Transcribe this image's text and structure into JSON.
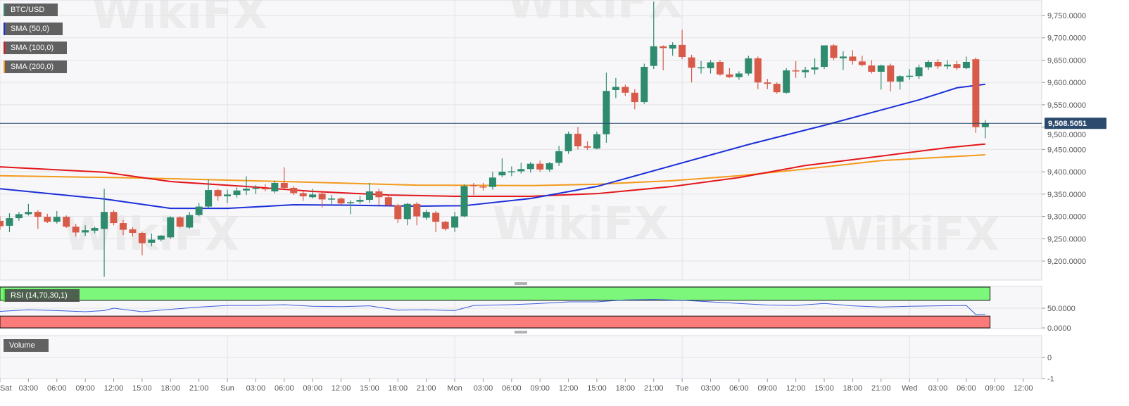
{
  "legends": {
    "symbol": {
      "label": "BTC/USD",
      "color": "#2e8b6e"
    },
    "sma50": {
      "label": "SMA (50,0)",
      "color": "#1b2fd8"
    },
    "sma100": {
      "label": "SMA (100,0)",
      "color": "#e3161b"
    },
    "sma200": {
      "label": "SMA (200,0)",
      "color": "#f39a1b"
    },
    "rsi": {
      "label": "RSI (14,70,30,1)",
      "color": "#3a5bd9"
    },
    "volume": {
      "label": "Volume"
    }
  },
  "current_price_label": "9,508.5051",
  "watermark": "WikiFX",
  "colors": {
    "up": "#2e8b6e",
    "down": "#d85a48",
    "rsi_overbought": "#7cf77c",
    "rsi_oversold": "#fb7b7b",
    "price_tag": "#2b4a6d"
  },
  "chart_data": {
    "type": "candlestick",
    "title": "",
    "price_axis": {
      "ylim": [
        9150,
        9790
      ],
      "ticks": [
        "9,200.0000",
        "9,250.0000",
        "9,300.0000",
        "9,350.0000",
        "9,400.0000",
        "9,450.0000",
        "9,500.0000",
        "9,550.0000",
        "9,600.0000",
        "9,650.0000",
        "9,700.0000",
        "9,750.0000"
      ],
      "tick_values": [
        9200,
        9250,
        9300,
        9350,
        9400,
        9450,
        9500,
        9550,
        9600,
        9650,
        9700,
        9750
      ]
    },
    "time_axis": {
      "ticks": [
        "Sat",
        "03:00",
        "06:00",
        "09:00",
        "12:00",
        "15:00",
        "18:00",
        "21:00",
        "Sun",
        "03:00",
        "06:00",
        "09:00",
        "12:00",
        "15:00",
        "18:00",
        "21:00",
        "Mon",
        "03:00",
        "06:00",
        "09:00",
        "12:00",
        "15:00",
        "18:00",
        "21:00",
        "Tue",
        "03:00",
        "06:00",
        "09:00",
        "12:00",
        "15:00",
        "18:00",
        "21:00",
        "Wed",
        "03:00",
        "06:00",
        "09:00",
        "12:00"
      ]
    },
    "grid": true,
    "current_price": 9508.5051,
    "candles_columns": [
      "time",
      "open",
      "high",
      "low",
      "close"
    ],
    "candles": [
      [
        "Sat 00:00",
        9290,
        9300,
        9270,
        9278
      ],
      [
        "Sat 01:00",
        9279,
        9307,
        9265,
        9296
      ],
      [
        "Sat 02:00",
        9296,
        9310,
        9290,
        9305
      ],
      [
        "Sat 03:00",
        9305,
        9328,
        9302,
        9310
      ],
      [
        "Sat 04:00",
        9310,
        9314,
        9272,
        9299
      ],
      [
        "Sat 05:00",
        9299,
        9306,
        9285,
        9288
      ],
      [
        "Sat 06:00",
        9288,
        9312,
        9284,
        9299
      ],
      [
        "Sat 07:00",
        9299,
        9302,
        9274,
        9277
      ],
      [
        "Sat 08:00",
        9277,
        9283,
        9255,
        9264
      ],
      [
        "Sat 09:00",
        9264,
        9280,
        9256,
        9269
      ],
      [
        "Sat 10:00",
        9268,
        9277,
        9262,
        9274
      ],
      [
        "Sat 11:00",
        9272,
        9362,
        9165,
        9310
      ],
      [
        "Sat 12:00",
        9310,
        9314,
        9280,
        9285
      ],
      [
        "Sat 13:00",
        9285,
        9292,
        9258,
        9270
      ],
      [
        "Sat 14:00",
        9271,
        9276,
        9255,
        9263
      ],
      [
        "Sat 15:00",
        9263,
        9266,
        9213,
        9240
      ],
      [
        "Sat 16:00",
        9241,
        9262,
        9233,
        9248
      ],
      [
        "Sat 17:00",
        9248,
        9258,
        9244,
        9257
      ],
      [
        "Sat 18:00",
        9253,
        9300,
        9250,
        9298
      ],
      [
        "Sat 19:00",
        9298,
        9300,
        9275,
        9277
      ],
      [
        "Sat 20:00",
        9275,
        9310,
        9272,
        9303
      ],
      [
        "Sat 21:00",
        9303,
        9330,
        9300,
        9322
      ],
      [
        "Sat 22:00",
        9322,
        9383,
        9318,
        9359
      ],
      [
        "Sat 23:00",
        9359,
        9362,
        9335,
        9345
      ],
      [
        "Sun 00:00",
        9345,
        9360,
        9330,
        9349
      ],
      [
        "Sun 01:00",
        9348,
        9365,
        9342,
        9358
      ],
      [
        "Sun 02:00",
        9358,
        9390,
        9348,
        9362
      ],
      [
        "Sun 03:00",
        9362,
        9370,
        9350,
        9364
      ],
      [
        "Sun 04:00",
        9363,
        9372,
        9356,
        9361
      ],
      [
        "Sun 05:00",
        9356,
        9380,
        9352,
        9375
      ],
      [
        "Sun 06:00",
        9375,
        9410,
        9362,
        9364
      ],
      [
        "Sun 07:00",
        9364,
        9368,
        9348,
        9352
      ],
      [
        "Sun 08:00",
        9352,
        9356,
        9335,
        9345
      ],
      [
        "Sun 09:00",
        9343,
        9362,
        9340,
        9349
      ],
      [
        "Sun 10:00",
        9351,
        9354,
        9320,
        9338
      ],
      [
        "Sun 11:00",
        9338,
        9348,
        9328,
        9340
      ],
      [
        "Sun 12:00",
        9340,
        9343,
        9326,
        9329
      ],
      [
        "Sun 13:00",
        9330,
        9336,
        9305,
        9332
      ],
      [
        "Sun 14:00",
        9333,
        9346,
        9328,
        9337
      ],
      [
        "Sun 15:00",
        9337,
        9375,
        9330,
        9356
      ],
      [
        "Sun 16:00",
        9356,
        9362,
        9325,
        9343
      ],
      [
        "Sun 17:00",
        9343,
        9346,
        9322,
        9325
      ],
      [
        "Sun 18:00",
        9325,
        9328,
        9285,
        9294
      ],
      [
        "Sun 19:00",
        9294,
        9330,
        9280,
        9328
      ],
      [
        "Sun 20:00",
        9328,
        9332,
        9280,
        9300
      ],
      [
        "Sun 21:00",
        9297,
        9315,
        9292,
        9310
      ],
      [
        "Sun 22:00",
        9308,
        9312,
        9265,
        9288
      ],
      [
        "Sun 23:00",
        9288,
        9290,
        9268,
        9272
      ],
      [
        "Mon 00:00",
        9275,
        9310,
        9265,
        9300
      ],
      [
        "Mon 01:00",
        9300,
        9372,
        9298,
        9368
      ],
      [
        "Mon 02:00",
        9370,
        9375,
        9348,
        9368
      ],
      [
        "Mon 03:00",
        9367,
        9375,
        9358,
        9366
      ],
      [
        "Mon 04:00",
        9366,
        9400,
        9360,
        9387
      ],
      [
        "Mon 05:00",
        9392,
        9430,
        9388,
        9400
      ],
      [
        "Mon 06:00",
        9400,
        9412,
        9390,
        9401
      ],
      [
        "Mon 07:00",
        9401,
        9420,
        9396,
        9406
      ],
      [
        "Mon 08:00",
        9406,
        9422,
        9398,
        9418
      ],
      [
        "Mon 09:00",
        9418,
        9425,
        9400,
        9405
      ],
      [
        "Mon 10:00",
        9405,
        9422,
        9400,
        9419
      ],
      [
        "Mon 11:00",
        9420,
        9458,
        9413,
        9446
      ],
      [
        "Mon 12:00",
        9446,
        9490,
        9440,
        9485
      ],
      [
        "Mon 13:00",
        9485,
        9500,
        9450,
        9457
      ],
      [
        "Mon 14:00",
        9457,
        9468,
        9449,
        9454
      ],
      [
        "Mon 15:00",
        9452,
        9490,
        9450,
        9484
      ],
      [
        "Mon 16:00",
        9484,
        9622,
        9465,
        9581
      ],
      [
        "Mon 17:00",
        9583,
        9610,
        9565,
        9590
      ],
      [
        "Mon 18:00",
        9590,
        9595,
        9570,
        9577
      ],
      [
        "Mon 19:00",
        9577,
        9585,
        9540,
        9556
      ],
      [
        "Mon 20:00",
        9556,
        9642,
        9552,
        9635
      ],
      [
        "Mon 21:00",
        9637,
        9781,
        9630,
        9681
      ],
      [
        "Mon 22:00",
        9681,
        9683,
        9627,
        9677
      ],
      [
        "Mon 23:00",
        9676,
        9690,
        9660,
        9684
      ],
      [
        "Tue 00:00",
        9684,
        9718,
        9652,
        9657
      ],
      [
        "Tue 01:00",
        9656,
        9662,
        9600,
        9633
      ],
      [
        "Tue 02:00",
        9633,
        9648,
        9620,
        9634
      ],
      [
        "Tue 03:00",
        9632,
        9650,
        9620,
        9645
      ],
      [
        "Tue 04:00",
        9646,
        9650,
        9615,
        9618
      ],
      [
        "Tue 05:00",
        9618,
        9632,
        9610,
        9612
      ],
      [
        "Tue 06:00",
        9612,
        9625,
        9606,
        9620
      ],
      [
        "Tue 07:00",
        9620,
        9660,
        9615,
        9654
      ],
      [
        "Tue 08:00",
        9654,
        9658,
        9585,
        9600
      ],
      [
        "Tue 09:00",
        9600,
        9608,
        9585,
        9597
      ],
      [
        "Tue 10:00",
        9597,
        9600,
        9575,
        9578
      ],
      [
        "Tue 11:00",
        9577,
        9632,
        9575,
        9627
      ],
      [
        "Tue 12:00",
        9627,
        9648,
        9610,
        9626
      ],
      [
        "Tue 13:00",
        9623,
        9635,
        9610,
        9628
      ],
      [
        "Tue 14:00",
        9629,
        9654,
        9618,
        9634
      ],
      [
        "Tue 15:00",
        9635,
        9683,
        9630,
        9683
      ],
      [
        "Tue 16:00",
        9683,
        9686,
        9650,
        9655
      ],
      [
        "Tue 17:00",
        9654,
        9670,
        9628,
        9658
      ],
      [
        "Tue 18:00",
        9658,
        9672,
        9640,
        9648
      ],
      [
        "Tue 19:00",
        9647,
        9660,
        9636,
        9639
      ],
      [
        "Tue 20:00",
        9638,
        9650,
        9620,
        9624
      ],
      [
        "Tue 21:00",
        9624,
        9640,
        9584,
        9638
      ],
      [
        "Tue 22:00",
        9638,
        9642,
        9580,
        9602
      ],
      [
        "Tue 23:00",
        9602,
        9616,
        9584,
        9614
      ],
      [
        "Wed 00:00",
        9614,
        9630,
        9606,
        9615
      ],
      [
        "Wed 01:00",
        9614,
        9640,
        9608,
        9634
      ],
      [
        "Wed 02:00",
        9634,
        9650,
        9628,
        9646
      ],
      [
        "Wed 03:00",
        9646,
        9652,
        9630,
        9636
      ],
      [
        "Wed 04:00",
        9636,
        9650,
        9630,
        9640
      ],
      [
        "Wed 05:00",
        9641,
        9648,
        9628,
        9632
      ],
      [
        "Wed 06:00",
        9632,
        9658,
        9630,
        9646
      ],
      [
        "Wed 07:00",
        9652,
        9656,
        9487,
        9500
      ],
      [
        "Wed 08:00",
        9500,
        9516,
        9475,
        9508.5051
      ]
    ],
    "sma50": [
      [
        "Sat 00:00",
        9362
      ],
      [
        "Sat 11:00",
        9339
      ],
      [
        "Sat 18:00",
        9318
      ],
      [
        "Sun 00:00",
        9318
      ],
      [
        "Sun 07:00",
        9326
      ],
      [
        "Sun 13:00",
        9325
      ],
      [
        "Sun 20:00",
        9323
      ],
      [
        "Mon 01:00",
        9324
      ],
      [
        "Mon 08:00",
        9340
      ],
      [
        "Mon 15:00",
        9367
      ],
      [
        "Mon 23:00",
        9414
      ],
      [
        "Tue 07:00",
        9461
      ],
      [
        "Tue 15:00",
        9504
      ],
      [
        "Wed 01:00",
        9561
      ],
      [
        "Wed 05:00",
        9588
      ],
      [
        "Wed 08:00",
        9596
      ]
    ],
    "sma100": [
      [
        "Sat 00:00",
        9411
      ],
      [
        "Sat 11:00",
        9399
      ],
      [
        "Sat 18:00",
        9378
      ],
      [
        "Sun 02:00",
        9367
      ],
      [
        "Sun 09:00",
        9356
      ],
      [
        "Sun 17:00",
        9348
      ],
      [
        "Mon 00:00",
        9345
      ],
      [
        "Mon 08:00",
        9345
      ],
      [
        "Mon 15:00",
        9351
      ],
      [
        "Mon 23:00",
        9367
      ],
      [
        "Tue 06:00",
        9387
      ],
      [
        "Tue 13:00",
        9414
      ],
      [
        "Tue 21:00",
        9435
      ],
      [
        "Wed 04:00",
        9454
      ],
      [
        "Wed 08:00",
        9462
      ]
    ],
    "sma200": [
      [
        "Sat 00:00",
        9391
      ],
      [
        "Sat 15:00",
        9386
      ],
      [
        "Sun 06:00",
        9378
      ],
      [
        "Sun 20:00",
        9370
      ],
      [
        "Mon 08:00",
        9369
      ],
      [
        "Mon 15:00",
        9372
      ],
      [
        "Mon 23:00",
        9380
      ],
      [
        "Tue 06:00",
        9391
      ],
      [
        "Tue 13:00",
        9406
      ],
      [
        "Tue 21:00",
        9425
      ],
      [
        "Wed 08:00",
        9438
      ]
    ],
    "rsi": {
      "ylim": [
        0,
        100
      ],
      "overbought": 70,
      "oversold": 30,
      "ticks": [
        "0.0000",
        "50.0000"
      ],
      "tick_values": [
        0,
        50
      ],
      "values": [
        [
          "Sat 00:00",
          42
        ],
        [
          "Sat 03:00",
          46
        ],
        [
          "Sat 06:00",
          44
        ],
        [
          "Sat 09:00",
          41
        ],
        [
          "Sat 11:00",
          44
        ],
        [
          "Sat 12:00",
          50
        ],
        [
          "Sat 15:00",
          41
        ],
        [
          "Sat 18:00",
          47
        ],
        [
          "Sat 21:00",
          53
        ],
        [
          "Sun 00:00",
          57
        ],
        [
          "Sun 03:00",
          57
        ],
        [
          "Sun 06:00",
          59
        ],
        [
          "Sun 09:00",
          55
        ],
        [
          "Sun 12:00",
          54
        ],
        [
          "Sun 15:00",
          56
        ],
        [
          "Sun 18:00",
          45
        ],
        [
          "Sun 21:00",
          46
        ],
        [
          "Mon 00:00",
          44
        ],
        [
          "Mon 02:00",
          57
        ],
        [
          "Mon 06:00",
          59
        ],
        [
          "Mon 09:00",
          62
        ],
        [
          "Mon 12:00",
          66
        ],
        [
          "Mon 15:00",
          66
        ],
        [
          "Mon 18:00",
          71
        ],
        [
          "Mon 21:00",
          72
        ],
        [
          "Tue 00:00",
          70
        ],
        [
          "Tue 03:00",
          66
        ],
        [
          "Tue 06:00",
          62
        ],
        [
          "Tue 09:00",
          58
        ],
        [
          "Tue 12:00",
          57
        ],
        [
          "Tue 15:00",
          62
        ],
        [
          "Tue 18:00",
          56
        ],
        [
          "Tue 21:00",
          53
        ],
        [
          "Wed 00:00",
          55
        ],
        [
          "Wed 03:00",
          56
        ],
        [
          "Wed 06:00",
          57
        ],
        [
          "Wed 07:00",
          34
        ],
        [
          "Wed 08:00",
          35
        ]
      ]
    },
    "volume": {
      "ticks": [
        "0",
        "-1"
      ],
      "tick_values": [
        0,
        -1
      ]
    }
  }
}
